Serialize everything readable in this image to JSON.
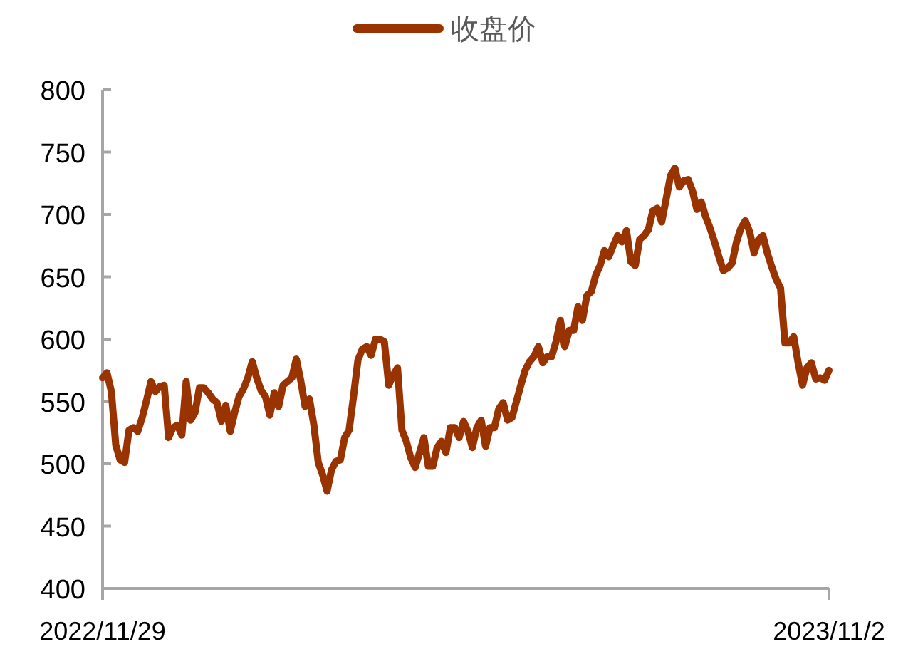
{
  "chart_data": {
    "type": "line",
    "categories": [
      "2022/11/29",
      null,
      null,
      null,
      null,
      null,
      null,
      null,
      null,
      null,
      null,
      null,
      null,
      null,
      null,
      null,
      null,
      null,
      null,
      null,
      null,
      null,
      null,
      null,
      null,
      null,
      null,
      null,
      null,
      null,
      null,
      null,
      null,
      null,
      null,
      null,
      null,
      null,
      null,
      null,
      null,
      null,
      null,
      null,
      null,
      null,
      null,
      null,
      null,
      null,
      null,
      null,
      null,
      null,
      null,
      null,
      null,
      null,
      null,
      null,
      null,
      null,
      null,
      null,
      null,
      null,
      null,
      null,
      null,
      null,
      null,
      null,
      null,
      null,
      null,
      null,
      null,
      null,
      null,
      null,
      null,
      null,
      null,
      null,
      null,
      null,
      null,
      null,
      null,
      null,
      null,
      null,
      null,
      null,
      null,
      null,
      null,
      null,
      null,
      null,
      null,
      null,
      null,
      null,
      null,
      null,
      null,
      null,
      null,
      null,
      null,
      null,
      null,
      null,
      null,
      null,
      null,
      null,
      null,
      null,
      null,
      null,
      null,
      null,
      null,
      null,
      null,
      null,
      null,
      null,
      null,
      null,
      null,
      null,
      null,
      null,
      null,
      null,
      null,
      null,
      null,
      null,
      null,
      null,
      null,
      null,
      null,
      null,
      null,
      null,
      null,
      null,
      null,
      null,
      null,
      null,
      null,
      null,
      null,
      null,
      null,
      null,
      null,
      null,
      null,
      "2023/11/2"
    ],
    "series": [
      {
        "name": "收盘价",
        "color": "#993300",
        "values": [
          569,
          573,
          558,
          515,
          503,
          501,
          527,
          529,
          526,
          537,
          551,
          566,
          558,
          562,
          563,
          521,
          529,
          531,
          523,
          566,
          535,
          541,
          561,
          561,
          557,
          552,
          549,
          534,
          547,
          526,
          541,
          554,
          560,
          569,
          582,
          569,
          559,
          554,
          539,
          557,
          546,
          563,
          566,
          569,
          584,
          567,
          546,
          552,
          531,
          501,
          491,
          478,
          495,
          502,
          503,
          521,
          527,
          554,
          583,
          592,
          594,
          587,
          600,
          600,
          598,
          563,
          571,
          577,
          527,
          518,
          505,
          497,
          509,
          521,
          498,
          498,
          513,
          518,
          509,
          529,
          529,
          521,
          534,
          526,
          513,
          529,
          535,
          514,
          529,
          529,
          544,
          549,
          535,
          537,
          550,
          563,
          575,
          582,
          586,
          594,
          581,
          586,
          586,
          598,
          615,
          594,
          607,
          607,
          626,
          615,
          635,
          638,
          651,
          659,
          671,
          666,
          675,
          683,
          678,
          687,
          662,
          659,
          680,
          683,
          688,
          703,
          705,
          694,
          712,
          731,
          737,
          722,
          727,
          728,
          719,
          704,
          710,
          698,
          689,
          678,
          666,
          655,
          657,
          661,
          678,
          689,
          695,
          686,
          669,
          680,
          683,
          669,
          658,
          648,
          641,
          597,
          597,
          602,
          581,
          563,
          577,
          581,
          568,
          569,
          567,
          575
        ]
      }
    ],
    "ylim": [
      400,
      800
    ],
    "yticks": [
      400,
      450,
      500,
      550,
      600,
      650,
      700,
      750,
      800
    ],
    "legend": "top",
    "grid": false
  }
}
